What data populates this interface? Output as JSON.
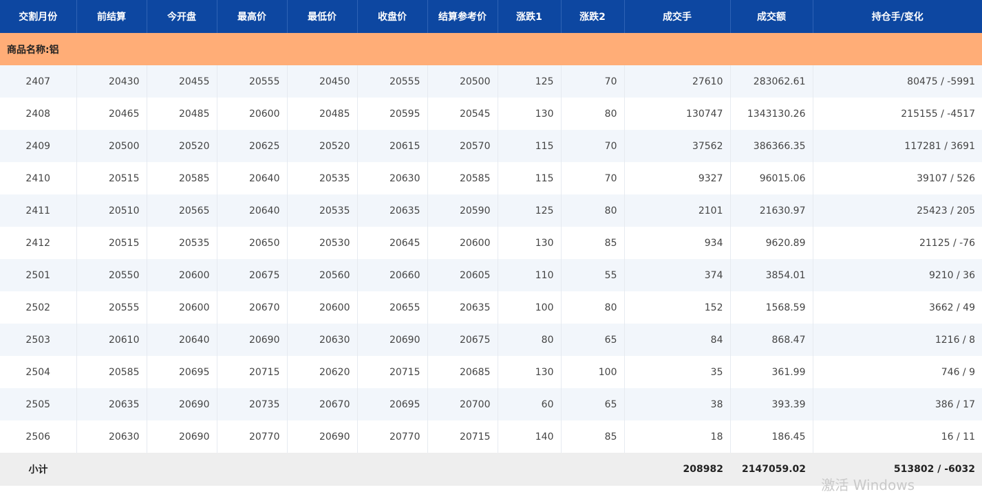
{
  "table": {
    "headers": [
      "交割月份",
      "前结算",
      "今开盘",
      "最高价",
      "最低价",
      "收盘价",
      "结算参考价",
      "涨跌1",
      "涨跌2",
      "成交手",
      "成交额",
      "持仓手/变化"
    ],
    "group_label": "商品名称:铝",
    "rows": [
      [
        "2407",
        "20430",
        "20455",
        "20555",
        "20450",
        "20555",
        "20500",
        "125",
        "70",
        "27610",
        "283062.61",
        "80475 / -5991"
      ],
      [
        "2408",
        "20465",
        "20485",
        "20600",
        "20485",
        "20595",
        "20545",
        "130",
        "80",
        "130747",
        "1343130.26",
        "215155 / -4517"
      ],
      [
        "2409",
        "20500",
        "20520",
        "20625",
        "20520",
        "20615",
        "20570",
        "115",
        "70",
        "37562",
        "386366.35",
        "117281 / 3691"
      ],
      [
        "2410",
        "20515",
        "20585",
        "20640",
        "20535",
        "20630",
        "20585",
        "115",
        "70",
        "9327",
        "96015.06",
        "39107 / 526"
      ],
      [
        "2411",
        "20510",
        "20565",
        "20640",
        "20535",
        "20635",
        "20590",
        "125",
        "80",
        "2101",
        "21630.97",
        "25423 / 205"
      ],
      [
        "2412",
        "20515",
        "20535",
        "20650",
        "20530",
        "20645",
        "20600",
        "130",
        "85",
        "934",
        "9620.89",
        "21125 / -76"
      ],
      [
        "2501",
        "20550",
        "20600",
        "20675",
        "20560",
        "20660",
        "20605",
        "110",
        "55",
        "374",
        "3854.01",
        "9210 / 36"
      ],
      [
        "2502",
        "20555",
        "20600",
        "20670",
        "20600",
        "20655",
        "20635",
        "100",
        "80",
        "152",
        "1568.59",
        "3662 / 49"
      ],
      [
        "2503",
        "20610",
        "20640",
        "20690",
        "20630",
        "20690",
        "20675",
        "80",
        "65",
        "84",
        "868.47",
        "1216 / 8"
      ],
      [
        "2504",
        "20585",
        "20695",
        "20715",
        "20620",
        "20715",
        "20685",
        "130",
        "100",
        "35",
        "361.99",
        "746 / 9"
      ],
      [
        "2505",
        "20635",
        "20690",
        "20735",
        "20670",
        "20695",
        "20700",
        "60",
        "65",
        "38",
        "393.39",
        "386 / 17"
      ],
      [
        "2506",
        "20630",
        "20690",
        "20770",
        "20690",
        "20770",
        "20715",
        "140",
        "85",
        "18",
        "186.45",
        "16 / 11"
      ]
    ],
    "subtotal": {
      "label": "小计",
      "volume": "208982",
      "turnover": "2147059.02",
      "open_interest": "513802 / -6032"
    }
  },
  "watermark_text": "激活 Windows",
  "colors": {
    "header_bg": "#0d47a1",
    "group_bg": "#ffad77",
    "row_alt_bg": "#f2f6fb",
    "subtotal_bg": "#eeeeee"
  }
}
